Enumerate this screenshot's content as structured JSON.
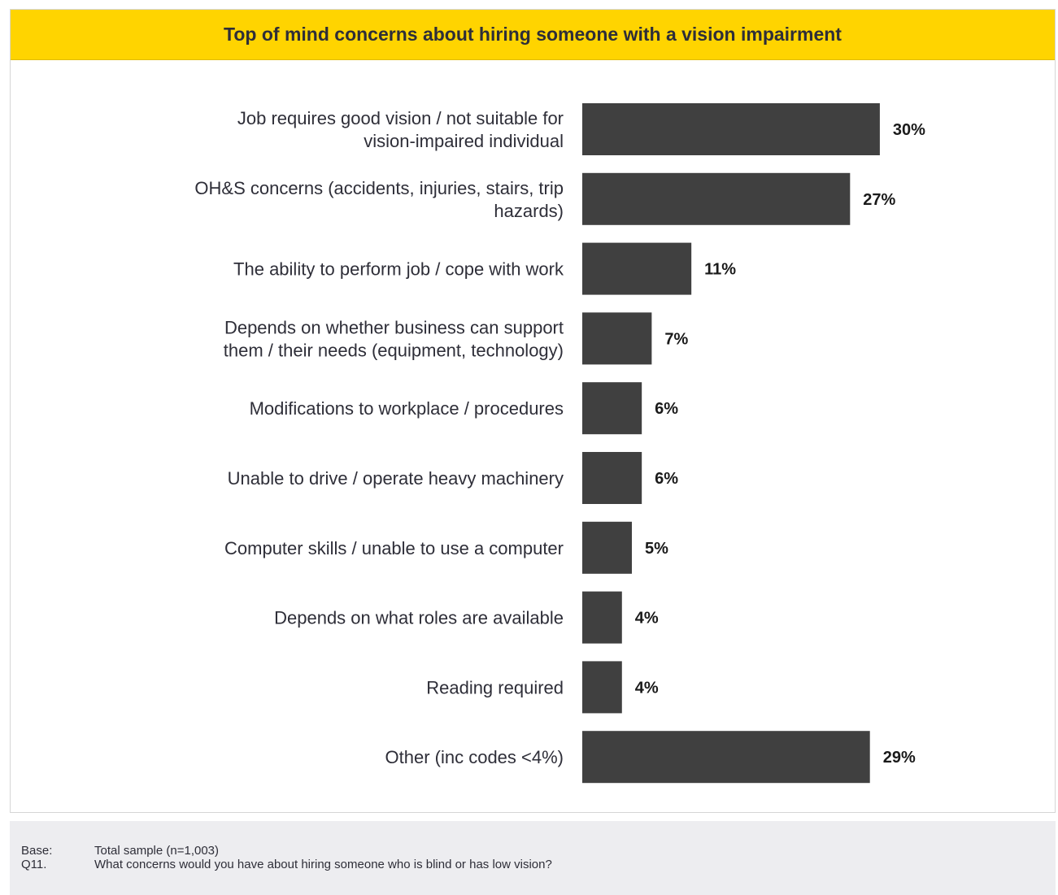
{
  "chart_data": {
    "type": "bar",
    "orientation": "horizontal",
    "title": "Top of mind concerns about hiring someone with a vision impairment",
    "categories": [
      [
        "Job requires good vision / not suitable for",
        "vision-impaired individual"
      ],
      [
        "OH&S concerns (accidents, injuries, stairs, trip",
        "hazards)"
      ],
      [
        "The ability to perform job / cope with work"
      ],
      [
        "Depends on whether business can support",
        "them / their needs (equipment, technology)"
      ],
      [
        "Modifications to workplace / procedures"
      ],
      [
        "Unable to drive / operate heavy machinery"
      ],
      [
        "Computer skills / unable to use a computer"
      ],
      [
        "Depends on what roles are available"
      ],
      [
        "Reading required"
      ],
      [
        "Other (inc codes <4%)"
      ]
    ],
    "values": [
      30,
      27,
      11,
      7,
      6,
      6,
      5,
      4,
      4,
      29
    ],
    "value_labels": [
      "30%",
      "27%",
      "11%",
      "7%",
      "6%",
      "6%",
      "5%",
      "4%",
      "4%",
      "29%"
    ],
    "unit": "%",
    "xlim": [
      0,
      30.5
    ],
    "bar_color": "#404040",
    "grid": false,
    "legend": "none"
  },
  "footer": {
    "base_key": "Base:",
    "base_text": "Total sample (n=1,003)",
    "q_key": "Q11.",
    "q_text": "What concerns would you have about hiring someone who is blind or has low vision?"
  },
  "colors": {
    "title_bar": "#ffd400",
    "bar": "#404040",
    "footer_bg": "#ededf0"
  }
}
